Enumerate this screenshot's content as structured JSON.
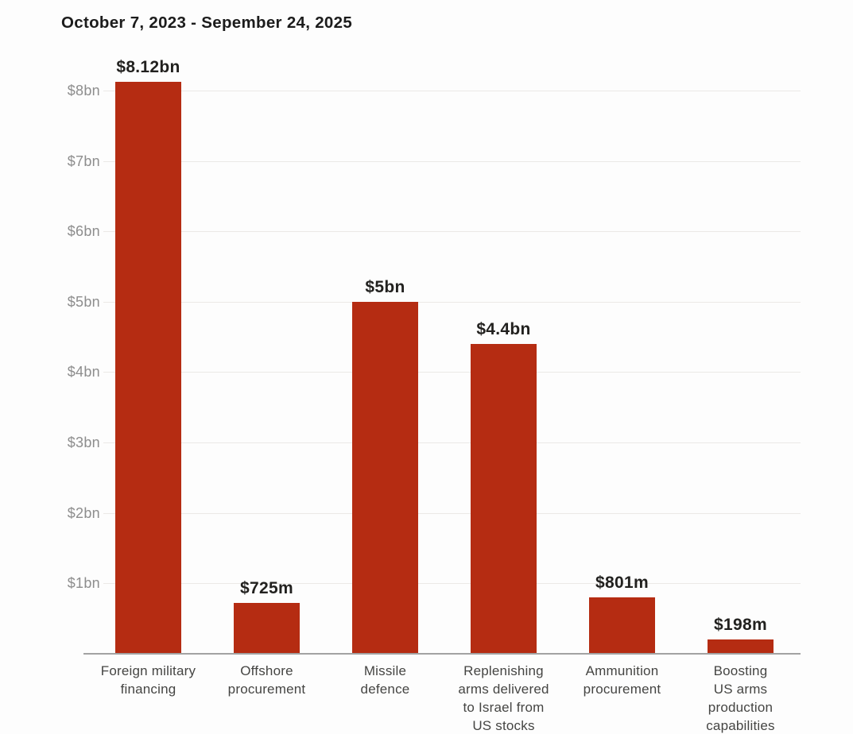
{
  "chart_data": {
    "type": "bar",
    "title": "October 7, 2023 - Sepember 24, 2025",
    "categories": [
      "Foreign military financing",
      "Offshore procurement",
      "Missile defence",
      "Replenishing arms delivered to Israel from US stocks",
      "Ammunition procurement",
      "Boosting US arms production capabilities"
    ],
    "category_label_lines": [
      [
        "Foreign military",
        "financing"
      ],
      [
        "Offshore",
        "procurement"
      ],
      [
        "Missile",
        "defence"
      ],
      [
        "Replenishing",
        "arms delivered",
        "to Israel from",
        "US stocks"
      ],
      [
        "Ammunition",
        "procurement"
      ],
      [
        "Boosting",
        "US arms",
        "production",
        "capabilities"
      ]
    ],
    "values_bn": [
      8.12,
      0.725,
      5,
      4.4,
      0.801,
      0.198
    ],
    "value_labels": [
      "$8.12bn",
      "$725m",
      "$5bn",
      "$4.4bn",
      "$801m",
      "$198m"
    ],
    "y_ticks": [
      "$1bn",
      "$2bn",
      "$3bn",
      "$4bn",
      "$5bn",
      "$6bn",
      "$7bn",
      "$8bn"
    ],
    "y_tick_values_bn": [
      1,
      2,
      3,
      4,
      5,
      6,
      7,
      8
    ],
    "ylim_bn": [
      0,
      8.2
    ],
    "xlabel": "",
    "ylabel": "",
    "grid": true,
    "legend": false,
    "colors": {
      "bar": "#b52c12",
      "title_text": "#1c1c1c",
      "value_label_text": "#22211f",
      "y_tick_text": "#8d8d8d",
      "category_text": "#454543",
      "axis_line": "#a2a2a2",
      "gridline": "#ebe9e6",
      "background": "#fdfdfd"
    }
  }
}
